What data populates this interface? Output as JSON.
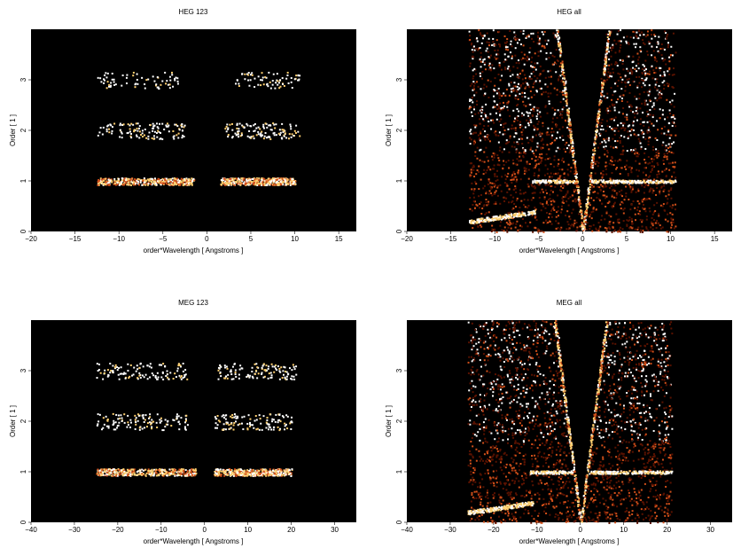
{
  "colors": {
    "background": "#000000",
    "heat_low": "#5a1200",
    "heat_mid": "#d2501a",
    "heat_high": "#ffd070",
    "heat_max": "#ffffff"
  },
  "chart_data": [
    {
      "type": "heatmap",
      "title": "HEG 123",
      "xlabel": "order*Wavelength [ Angstroms ]",
      "ylabel": "Order [ 1 ]",
      "xlim": [
        -20,
        17
      ],
      "ylim": [
        0,
        4
      ],
      "xticks": [
        -20,
        -15,
        -10,
        -5,
        0,
        5,
        10,
        15
      ],
      "xtick_labels": [
        "−20",
        "−15",
        "−10",
        "−5",
        "0",
        "5",
        "10",
        "15"
      ],
      "yticks": [
        0,
        1,
        2,
        3
      ],
      "yticks_labels": [
        "0",
        "1",
        "2",
        "3"
      ],
      "series": [
        {
          "order": 1,
          "x_ranges": [
            [
              -12.5,
              -1.5
            ],
            [
              1.5,
              10.0
            ]
          ],
          "density": "high"
        },
        {
          "order": 2,
          "x_ranges": [
            [
              -12.5,
              -2.5
            ],
            [
              2.0,
              10.5
            ]
          ],
          "density": "medium"
        },
        {
          "order": 3,
          "x_ranges": [
            [
              -12.5,
              -3.0
            ],
            [
              3.0,
              10.5
            ]
          ],
          "density": "low"
        }
      ]
    },
    {
      "type": "heatmap",
      "title": "HEG all",
      "xlabel": "order*Wavelength [ Angstroms ]",
      "ylabel": "Order [ 1 ]",
      "xlim": [
        -20,
        17
      ],
      "ylim": [
        0,
        4
      ],
      "xticks": [
        -20,
        -15,
        -10,
        -5,
        0,
        5,
        10,
        15
      ],
      "xtick_labels": [
        "−20",
        "−15",
        "−10",
        "−5",
        "0",
        "5",
        "10",
        "15"
      ],
      "yticks": [
        0,
        1,
        2,
        3
      ],
      "yticks_labels": [
        "0",
        "1",
        "2",
        "3"
      ],
      "data_extent_x": [
        -13,
        10.5
      ],
      "features": {
        "order1_band": true,
        "v_arms": true,
        "low_order_arc": true
      }
    },
    {
      "type": "heatmap",
      "title": "MEG 123",
      "xlabel": "order*Wavelength [ Angstroms ]",
      "ylabel": "Order [ 1 ]",
      "xlim": [
        -40,
        35
      ],
      "ylim": [
        0,
        4
      ],
      "xticks": [
        -40,
        -30,
        -20,
        -10,
        0,
        10,
        20,
        30
      ],
      "xtick_labels": [
        "−40",
        "−30",
        "−20",
        "−10",
        "0",
        "10",
        "20",
        "30"
      ],
      "yticks": [
        0,
        1,
        2,
        3
      ],
      "yticks_labels": [
        "0",
        "1",
        "2",
        "3"
      ],
      "series": [
        {
          "order": 1,
          "x_ranges": [
            [
              -25,
              -2
            ],
            [
              2,
              20
            ]
          ],
          "density": "high"
        },
        {
          "order": 2,
          "x_ranges": [
            [
              -25,
              -4
            ],
            [
              2,
              20
            ]
          ],
          "density": "medium"
        },
        {
          "order": 3,
          "x_ranges": [
            [
              -25,
              -4
            ],
            [
              3,
              21
            ]
          ],
          "density": "medium"
        }
      ]
    },
    {
      "type": "heatmap",
      "title": "MEG all",
      "xlabel": "order*Wavelength [ Angstroms ]",
      "ylabel": "Order [ 1 ]",
      "xlim": [
        -40,
        35
      ],
      "ylim": [
        0,
        4
      ],
      "xticks": [
        -40,
        -30,
        -20,
        -10,
        0,
        10,
        20,
        30
      ],
      "xtick_labels": [
        "−40",
        "−30",
        "−20",
        "−10",
        "0",
        "10",
        "20",
        "30"
      ],
      "yticks": [
        0,
        1,
        2,
        3
      ],
      "yticks_labels": [
        "0",
        "1",
        "2",
        "3"
      ],
      "data_extent_x": [
        -26,
        21
      ],
      "features": {
        "order1_band": true,
        "v_arms": true,
        "low_order_arc": true
      }
    }
  ]
}
